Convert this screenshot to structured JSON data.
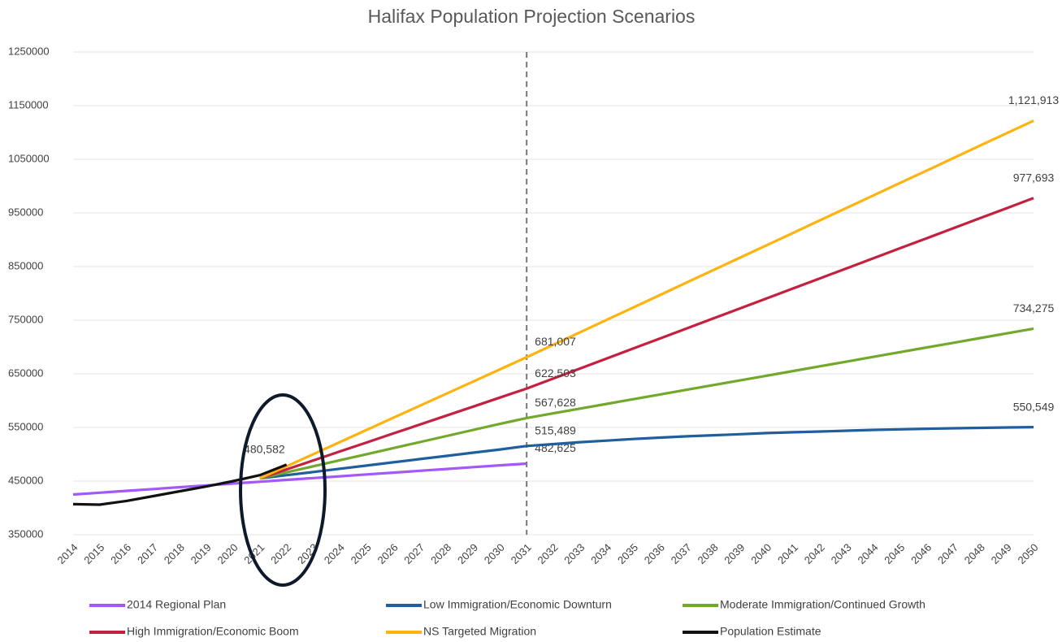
{
  "chart_data": {
    "type": "line",
    "title": "Halifax Population Projection Scenarios",
    "categories": [
      "2014",
      "2015",
      "2016",
      "2017",
      "2018",
      "2019",
      "2020",
      "2021",
      "2022",
      "2023",
      "2024",
      "2025",
      "2026",
      "2027",
      "2028",
      "2029",
      "2030",
      "2031",
      "2032",
      "2033",
      "2034",
      "2035",
      "2036",
      "2037",
      "2038",
      "2039",
      "2040",
      "2041",
      "2042",
      "2043",
      "2044",
      "2045",
      "2046",
      "2047",
      "2048",
      "2049",
      "2050"
    ],
    "ylim": [
      350000,
      1250000
    ],
    "yticks": [
      350000,
      450000,
      550000,
      650000,
      750000,
      850000,
      950000,
      1050000,
      1150000,
      1250000
    ],
    "grid": true,
    "reference_line_x": "2031",
    "series": [
      {
        "name": "2014 Regional Plan",
        "color": "#a259f7",
        "values": [
          425000,
          428400,
          431800,
          435200,
          438600,
          442000,
          445400,
          448800,
          452200,
          455600,
          459000,
          462400,
          465800,
          469200,
          472600,
          476000,
          479400,
          482625,
          null,
          null,
          null,
          null,
          null,
          null,
          null,
          null,
          null,
          null,
          null,
          null,
          null,
          null,
          null,
          null,
          null,
          null,
          null
        ],
        "value_labels": [
          null,
          null,
          null,
          null,
          null,
          null,
          null,
          null,
          null,
          null,
          null,
          null,
          null,
          null,
          null,
          null,
          null,
          "482,625",
          null,
          null,
          null,
          null,
          null,
          null,
          null,
          null,
          null,
          null,
          null,
          null,
          null,
          null,
          null,
          null,
          null,
          null,
          null
        ]
      },
      {
        "name": "Low Immigration/Economic Downturn",
        "color": "#1f5f9e",
        "values": [
          null,
          null,
          null,
          null,
          null,
          null,
          null,
          455000,
          461000,
          467000,
          473000,
          479000,
          485000,
          491000,
          497000,
          503000,
          509000,
          515489,
          519000,
          522500,
          525500,
          528500,
          531000,
          533500,
          535500,
          537500,
          539500,
          541000,
          542500,
          544000,
          545500,
          546500,
          547500,
          548500,
          549300,
          550000,
          550549
        ],
        "value_labels": [
          null,
          null,
          null,
          null,
          null,
          null,
          null,
          null,
          null,
          null,
          null,
          null,
          null,
          null,
          null,
          null,
          null,
          "515,489",
          null,
          null,
          null,
          null,
          null,
          null,
          null,
          null,
          null,
          null,
          null,
          null,
          null,
          null,
          null,
          null,
          null,
          null,
          "550,549"
        ]
      },
      {
        "name": "Moderate Immigration/Continued Growth",
        "color": "#72a82c",
        "values": [
          null,
          null,
          null,
          null,
          null,
          null,
          null,
          455000,
          466300,
          477600,
          488900,
          500200,
          511500,
          522800,
          534100,
          545400,
          556700,
          567628,
          576400,
          585170,
          593940,
          602710,
          611480,
          620250,
          629020,
          637790,
          646560,
          655330,
          664100,
          672870,
          681640,
          690410,
          699180,
          707950,
          716720,
          725490,
          734275
        ],
        "value_labels": [
          null,
          null,
          null,
          null,
          null,
          null,
          null,
          null,
          null,
          null,
          null,
          null,
          null,
          null,
          null,
          null,
          null,
          "567,628",
          null,
          null,
          null,
          null,
          null,
          null,
          null,
          null,
          null,
          null,
          null,
          null,
          null,
          null,
          null,
          null,
          null,
          null,
          "734,275"
        ]
      },
      {
        "name": "High Immigration/Economic Boom",
        "color": "#c42040",
        "values": [
          null,
          null,
          null,
          null,
          null,
          null,
          null,
          455000,
          471750,
          488500,
          505250,
          522000,
          538750,
          555500,
          572250,
          589000,
          605750,
          622503,
          641200,
          659890,
          678580,
          697270,
          715960,
          734650,
          753340,
          772030,
          790720,
          809410,
          828100,
          846790,
          865480,
          884170,
          902860,
          921550,
          940240,
          958930,
          977693
        ],
        "value_labels": [
          null,
          null,
          null,
          null,
          null,
          null,
          null,
          null,
          null,
          null,
          null,
          null,
          null,
          null,
          null,
          null,
          null,
          "622,503",
          null,
          null,
          null,
          null,
          null,
          null,
          null,
          null,
          null,
          null,
          null,
          null,
          null,
          null,
          null,
          null,
          null,
          null,
          "977,693"
        ]
      },
      {
        "name": "NS Targeted Migration",
        "color": "#ffb30f",
        "values": [
          null,
          null,
          null,
          null,
          null,
          null,
          null,
          455000,
          477600,
          500200,
          522800,
          545400,
          568000,
          590600,
          613200,
          635800,
          658400,
          681007,
          704200,
          727410,
          750620,
          773830,
          797040,
          820250,
          843460,
          866670,
          889880,
          913090,
          936300,
          959510,
          982720,
          1005930,
          1029140,
          1052350,
          1075560,
          1098770,
          1121913
        ],
        "value_labels": [
          null,
          null,
          null,
          null,
          null,
          null,
          null,
          null,
          null,
          null,
          null,
          null,
          null,
          null,
          null,
          null,
          null,
          "681,007",
          null,
          null,
          null,
          null,
          null,
          null,
          null,
          null,
          null,
          null,
          null,
          null,
          null,
          null,
          null,
          null,
          null,
          null,
          "1,121,913"
        ]
      },
      {
        "name": "Population Estimate",
        "color": "#111111",
        "values": [
          407000,
          406000,
          413000,
          422000,
          431000,
          440000,
          450000,
          461000,
          480582,
          null,
          null,
          null,
          null,
          null,
          null,
          null,
          null,
          null,
          null,
          null,
          null,
          null,
          null,
          null,
          null,
          null,
          null,
          null,
          null,
          null,
          null,
          null,
          null,
          null,
          null,
          null,
          null
        ],
        "value_labels": [
          null,
          null,
          null,
          null,
          null,
          null,
          null,
          null,
          "480,582",
          null,
          null,
          null,
          null,
          null,
          null,
          null,
          null,
          null,
          null,
          null,
          null,
          null,
          null,
          null,
          null,
          null,
          null,
          null,
          null,
          null,
          null,
          null,
          null,
          null,
          null,
          null,
          null
        ]
      }
    ]
  }
}
